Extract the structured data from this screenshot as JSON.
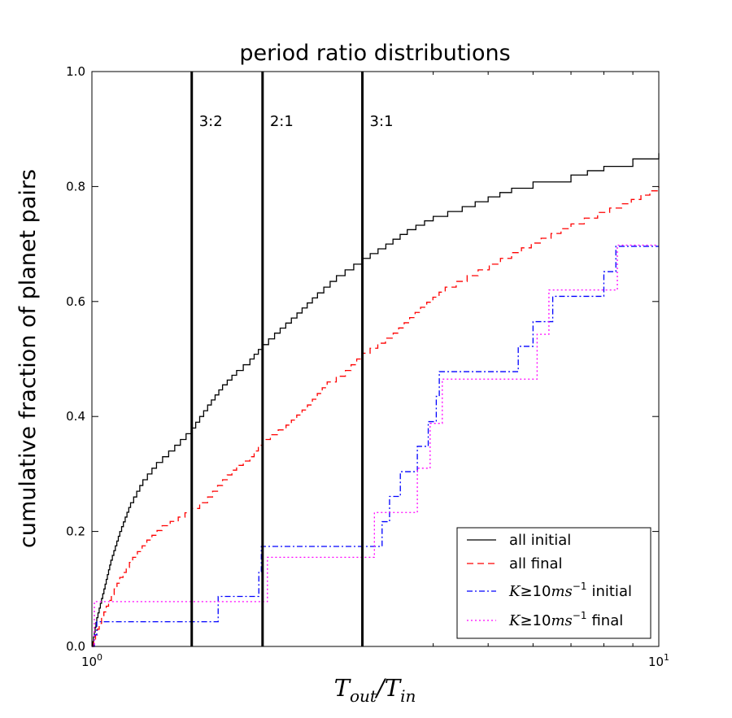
{
  "chart_data": {
    "type": "line",
    "title": "period ratio distributions",
    "xlabel": "T_out/T_in",
    "xlabel_parts": {
      "base1": "T",
      "sub1": "out",
      "slash": "/",
      "base2": "T",
      "sub2": "in"
    },
    "ylabel": "cumulative fraction of planet pairs",
    "xscale": "log",
    "xlim": [
      1,
      10
    ],
    "ylim": [
      0,
      1
    ],
    "x_ticks": [
      {
        "value": 1,
        "base": "10",
        "exp": "0"
      },
      {
        "value": 10,
        "base": "10",
        "exp": "1"
      }
    ],
    "y_ticks": [
      {
        "value": 0.0,
        "label": "0.0"
      },
      {
        "value": 0.2,
        "label": "0.2"
      },
      {
        "value": 0.4,
        "label": "0.4"
      },
      {
        "value": 0.6,
        "label": "0.6"
      },
      {
        "value": 0.8,
        "label": "0.8"
      },
      {
        "value": 1.0,
        "label": "1.0"
      }
    ],
    "resonances": [
      {
        "x": 1.5,
        "label": "3:2",
        "label_y": 0.905
      },
      {
        "x": 2.0,
        "label": "2:1",
        "label_y": 0.905
      },
      {
        "x": 3.0,
        "label": "3:1",
        "label_y": 0.905
      }
    ],
    "series": [
      {
        "name": "all initial",
        "legend_label": "all initial",
        "color": "#000000",
        "dash": "",
        "style": "smooth-step",
        "points": [
          [
            1.0,
            0.0
          ],
          [
            1.02,
            0.05
          ],
          [
            1.05,
            0.1
          ],
          [
            1.08,
            0.15
          ],
          [
            1.12,
            0.2
          ],
          [
            1.17,
            0.25
          ],
          [
            1.23,
            0.29
          ],
          [
            1.3,
            0.32
          ],
          [
            1.4,
            0.35
          ],
          [
            1.5,
            0.38
          ],
          [
            1.6,
            0.42
          ],
          [
            1.7,
            0.455
          ],
          [
            1.8,
            0.48
          ],
          [
            1.9,
            0.5
          ],
          [
            2.0,
            0.525
          ],
          [
            2.1,
            0.545
          ],
          [
            2.3,
            0.58
          ],
          [
            2.5,
            0.615
          ],
          [
            2.7,
            0.645
          ],
          [
            3.0,
            0.675
          ],
          [
            3.3,
            0.7
          ],
          [
            3.6,
            0.725
          ],
          [
            4.0,
            0.748
          ],
          [
            4.5,
            0.765
          ],
          [
            5.0,
            0.782
          ],
          [
            5.5,
            0.797
          ],
          [
            6.0,
            0.808
          ],
          [
            7.0,
            0.82
          ],
          [
            8.0,
            0.835
          ],
          [
            9.0,
            0.848
          ],
          [
            10.0,
            0.858
          ]
        ]
      },
      {
        "name": "all final",
        "legend_label": "all final",
        "color": "#ff0000",
        "dash": "8,5",
        "style": "smooth-step",
        "points": [
          [
            1.0,
            0.0
          ],
          [
            1.03,
            0.04
          ],
          [
            1.07,
            0.08
          ],
          [
            1.12,
            0.12
          ],
          [
            1.18,
            0.155
          ],
          [
            1.25,
            0.185
          ],
          [
            1.33,
            0.21
          ],
          [
            1.42,
            0.225
          ],
          [
            1.5,
            0.24
          ],
          [
            1.6,
            0.26
          ],
          [
            1.7,
            0.29
          ],
          [
            1.8,
            0.315
          ],
          [
            1.9,
            0.33
          ],
          [
            2.0,
            0.36
          ],
          [
            2.2,
            0.385
          ],
          [
            2.4,
            0.42
          ],
          [
            2.6,
            0.46
          ],
          [
            2.8,
            0.48
          ],
          [
            3.0,
            0.51
          ],
          [
            3.4,
            0.545
          ],
          [
            3.8,
            0.59
          ],
          [
            4.2,
            0.625
          ],
          [
            4.8,
            0.655
          ],
          [
            5.5,
            0.685
          ],
          [
            6.2,
            0.71
          ],
          [
            7.0,
            0.735
          ],
          [
            7.8,
            0.755
          ],
          [
            8.6,
            0.77
          ],
          [
            9.3,
            0.785
          ],
          [
            10.0,
            0.8
          ]
        ]
      },
      {
        "name": "K≥10ms^-1 initial",
        "legend_label": "initial",
        "color": "#0000ff",
        "dash": "7,3,2,3",
        "style": "step",
        "points": [
          [
            1.0,
            0.0
          ],
          [
            1.01,
            0.02
          ],
          [
            1.02,
            0.043
          ],
          [
            1.65,
            0.043
          ],
          [
            1.67,
            0.087
          ],
          [
            1.95,
            0.087
          ],
          [
            1.97,
            0.13
          ],
          [
            1.99,
            0.174
          ],
          [
            3.2,
            0.174
          ],
          [
            3.25,
            0.217
          ],
          [
            3.35,
            0.261
          ],
          [
            3.5,
            0.304
          ],
          [
            3.75,
            0.348
          ],
          [
            3.92,
            0.391
          ],
          [
            4.05,
            0.435
          ],
          [
            4.1,
            0.478
          ],
          [
            5.5,
            0.478
          ],
          [
            5.65,
            0.522
          ],
          [
            6.0,
            0.565
          ],
          [
            6.5,
            0.609
          ],
          [
            7.9,
            0.609
          ],
          [
            8.0,
            0.652
          ],
          [
            8.4,
            0.696
          ],
          [
            10.0,
            0.696
          ]
        ]
      },
      {
        "name": "K≥10ms^-1 final",
        "legend_label": "final",
        "color": "#ff00ff",
        "dash": "2,3",
        "style": "step",
        "points": [
          [
            1.0,
            0.0
          ],
          [
            1.01,
            0.078
          ],
          [
            2.02,
            0.078
          ],
          [
            2.04,
            0.155
          ],
          [
            3.1,
            0.155
          ],
          [
            3.15,
            0.233
          ],
          [
            3.65,
            0.233
          ],
          [
            3.75,
            0.31
          ],
          [
            3.95,
            0.388
          ],
          [
            4.15,
            0.465
          ],
          [
            6.0,
            0.465
          ],
          [
            6.1,
            0.543
          ],
          [
            6.4,
            0.62
          ],
          [
            8.4,
            0.62
          ],
          [
            8.45,
            0.698
          ],
          [
            10.0,
            0.698
          ]
        ]
      }
    ],
    "legend": {
      "placement": "bottom-right",
      "k_math": {
        "K": "K",
        "ge": "≥",
        "num": "10",
        "ms": "ms",
        "exp": "−1"
      }
    }
  }
}
